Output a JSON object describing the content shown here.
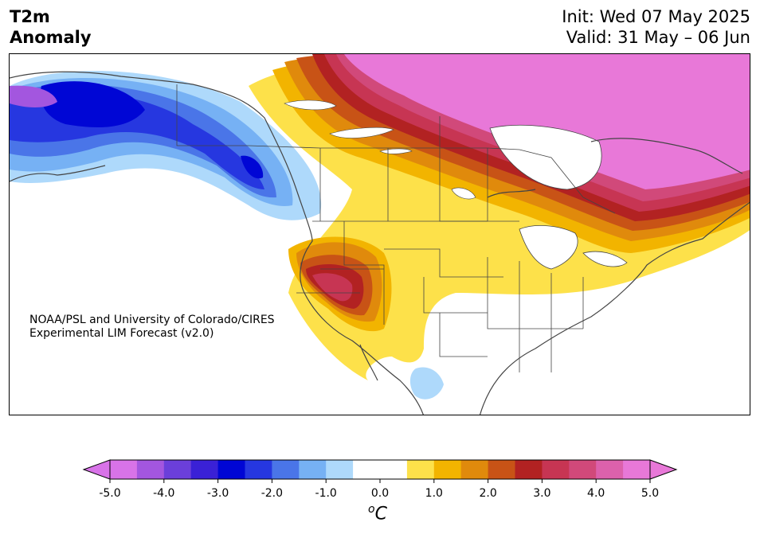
{
  "title": {
    "line1": "T2m",
    "line2": "Anomaly"
  },
  "dates": {
    "init": "Init: Wed 07 May 2025",
    "valid": "Valid: 31 May – 06 Jun"
  },
  "credit": {
    "line1": "NOAA/PSL and University of Colorado/CIRES",
    "line2": "Experimental LIM Forecast (v2.0)"
  },
  "colorbar": {
    "ticks": [
      "-5.0",
      "-4.0",
      "-3.0",
      "-2.0",
      "-1.0",
      "0.0",
      "1.0",
      "2.0",
      "3.0",
      "4.0",
      "5.0"
    ],
    "unit_sup": "o",
    "unit": "C",
    "colors": [
      "#d873e8",
      "#a356df",
      "#6b3fda",
      "#3a21d6",
      "#0006d5",
      "#2637e0",
      "#4a75e8",
      "#76b1f4",
      "#aed9fb",
      "#ffffff",
      "#ffffff",
      "#fde14a",
      "#f2b400",
      "#e08a0c",
      "#c85316",
      "#b22222",
      "#c73553",
      "#d1497a",
      "#dc61ac",
      "#e878d8"
    ]
  },
  "colors": {
    "coast": "#444444",
    "land": "#ffffff"
  }
}
